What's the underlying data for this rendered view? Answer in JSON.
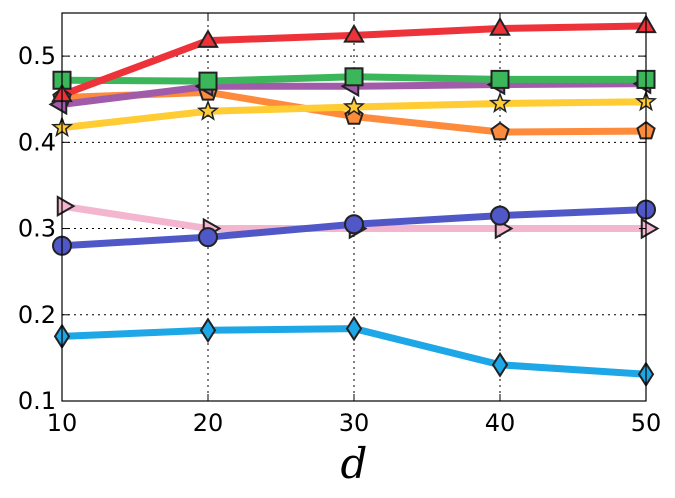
{
  "chart_data": {
    "type": "line",
    "title": "",
    "xlabel": "d",
    "ylabel": "",
    "x": [
      10,
      20,
      30,
      40,
      50
    ],
    "xlim": [
      10,
      50
    ],
    "ylim": [
      0.1,
      0.55
    ],
    "xticks": [
      10,
      20,
      30,
      40,
      50
    ],
    "yticks": [
      0.1,
      0.2,
      0.3,
      0.4,
      0.5
    ],
    "xtick_labels": [
      "10",
      "20",
      "30",
      "40",
      "50"
    ],
    "ytick_labels": [
      "0.1",
      "0.2",
      "0.3",
      "0.4",
      "0.5"
    ],
    "grid": true,
    "legend": "none",
    "series": [
      {
        "color": "#f4b6cf",
        "marker": "triangle-right",
        "values": [
          0.326,
          0.3,
          0.3,
          0.3,
          0.3
        ]
      },
      {
        "color": "#5058c8",
        "marker": "circle",
        "values": [
          0.28,
          0.29,
          0.305,
          0.315,
          0.322
        ]
      },
      {
        "color": "#1ea7e6",
        "marker": "diamond",
        "values": [
          0.175,
          0.182,
          0.184,
          0.142,
          0.131
        ]
      },
      {
        "color": "#fd8b3b",
        "marker": "pentagon",
        "values": [
          0.452,
          0.458,
          0.43,
          0.412,
          0.413
        ]
      },
      {
        "color": "#ffcc33",
        "marker": "star",
        "values": [
          0.417,
          0.436,
          0.441,
          0.445,
          0.447
        ]
      },
      {
        "color": "#a15ca9",
        "marker": "triangle-left",
        "values": [
          0.444,
          0.465,
          0.465,
          0.467,
          0.468
        ]
      },
      {
        "color": "#3cb65a",
        "marker": "square",
        "values": [
          0.472,
          0.471,
          0.476,
          0.473,
          0.473
        ]
      },
      {
        "color": "#ee3239",
        "marker": "triangle-up",
        "values": [
          0.455,
          0.518,
          0.524,
          0.532,
          0.535
        ]
      }
    ]
  }
}
